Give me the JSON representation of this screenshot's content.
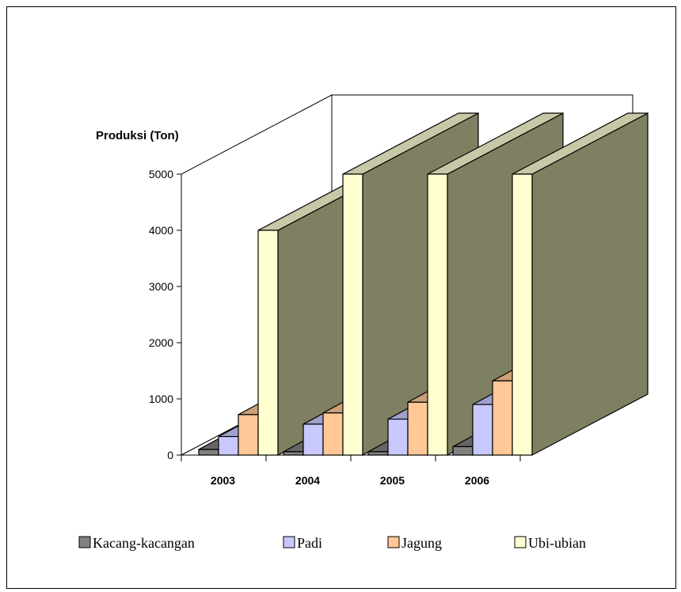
{
  "chart_data": {
    "type": "bar",
    "ylabel": "Produksi (Ton)",
    "xlabel": "",
    "ylim": [
      0,
      5000
    ],
    "yticks": [
      0,
      1000,
      2000,
      3000,
      4000,
      5000
    ],
    "categories": [
      "2003",
      "2004",
      "2005",
      "2006"
    ],
    "series": [
      {
        "name": "Kacang-kacangan",
        "values": [
          100,
          60,
          60,
          150
        ]
      },
      {
        "name": "Padi",
        "values": [
          330,
          550,
          640,
          900
        ]
      },
      {
        "name": "Jagung",
        "values": [
          720,
          750,
          940,
          1320
        ]
      },
      {
        "name": "Ubi-ubian",
        "values": [
          4000,
          5000,
          5000,
          5000
        ]
      }
    ],
    "legend_position": "bottom",
    "grid": false,
    "colors": {
      "Kacang-kacangan": "#808080",
      "Padi": "#c8c8ff",
      "Jagung": "#ffc896",
      "Ubi-ubian": "#ffffd0",
      "side_shade": "#7f7f62",
      "top_shade": "#c8c8a8"
    }
  }
}
